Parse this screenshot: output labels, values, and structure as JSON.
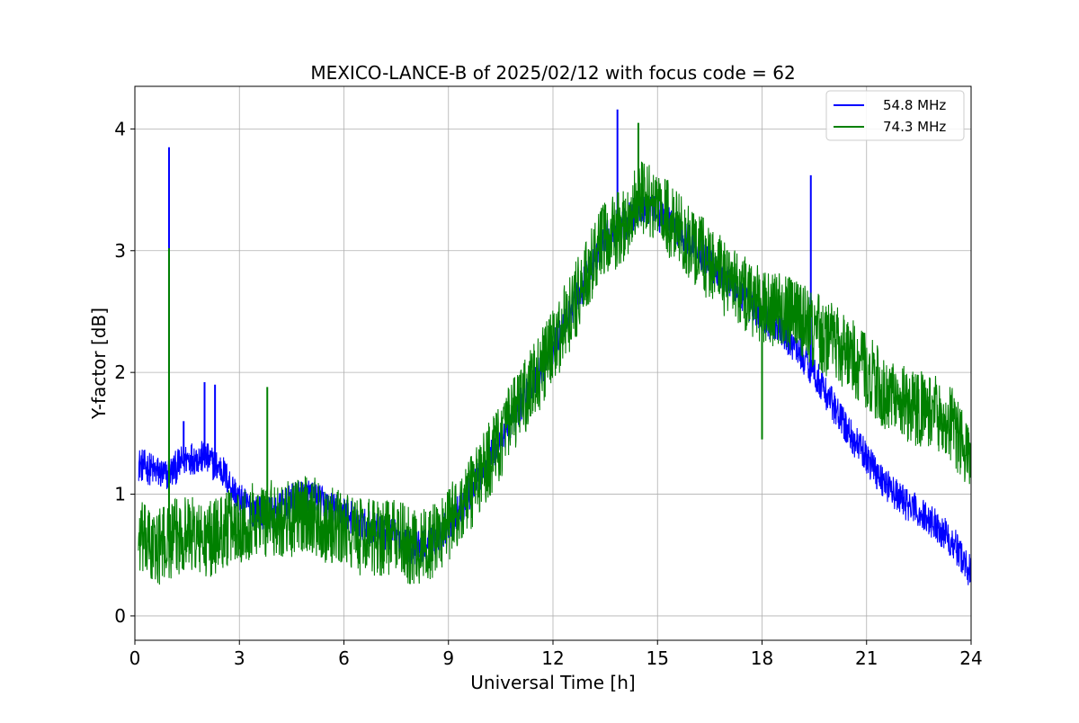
{
  "chart_data": {
    "type": "line",
    "title": "MEXICO-LANCE-B of 2025/02/12 with focus code = 62",
    "xlabel": "Universal Time [h]",
    "ylabel": "Y-factor [dB]",
    "xlim": [
      0,
      24
    ],
    "ylim": [
      -0.2,
      4.35
    ],
    "xticks": [
      0,
      3,
      6,
      9,
      12,
      15,
      18,
      21,
      24
    ],
    "yticks": [
      0,
      1,
      2,
      3,
      4
    ],
    "grid": true,
    "legend_position": "top-right",
    "series": [
      {
        "name": "54.8 MHz",
        "color": "#0000ff",
        "x": [
          0.1,
          0.5,
          0.9,
          1.5,
          2.0,
          2.5,
          3.0,
          3.5,
          4.0,
          4.5,
          5.0,
          5.5,
          6.0,
          6.5,
          7.0,
          7.5,
          8.0,
          8.5,
          9.0,
          9.5,
          10.0,
          10.5,
          11.0,
          11.5,
          12.0,
          12.5,
          13.0,
          13.5,
          14.0,
          14.5,
          15.0,
          15.5,
          16.0,
          16.5,
          17.0,
          17.5,
          18.0,
          18.5,
          19.0,
          19.5,
          20.0,
          20.5,
          21.0,
          21.5,
          22.0,
          22.5,
          23.0,
          23.5,
          24.0
        ],
        "y": [
          1.25,
          1.2,
          1.15,
          1.3,
          1.3,
          1.2,
          0.95,
          0.85,
          0.85,
          0.95,
          1.0,
          0.9,
          0.85,
          0.75,
          0.7,
          0.65,
          0.55,
          0.6,
          0.75,
          0.95,
          1.2,
          1.45,
          1.7,
          1.95,
          2.2,
          2.5,
          2.8,
          3.1,
          3.2,
          3.35,
          3.3,
          3.2,
          3.05,
          2.9,
          2.75,
          2.6,
          2.45,
          2.35,
          2.2,
          2.0,
          1.75,
          1.5,
          1.3,
          1.1,
          0.95,
          0.85,
          0.75,
          0.6,
          0.35
        ],
        "noise": 0.14,
        "spikes": [
          [
            0.98,
            3.85
          ],
          [
            1.4,
            1.6
          ],
          [
            2.0,
            1.92
          ],
          [
            2.3,
            1.9
          ],
          [
            13.85,
            4.16
          ],
          [
            19.4,
            3.62
          ]
        ]
      },
      {
        "name": "74.3 MHz",
        "color": "#008000",
        "x": [
          0.1,
          0.5,
          0.9,
          1.5,
          2.0,
          2.5,
          3.0,
          3.5,
          4.0,
          4.5,
          5.0,
          5.5,
          6.0,
          6.5,
          7.0,
          7.5,
          8.0,
          8.5,
          9.0,
          9.5,
          10.0,
          10.5,
          11.0,
          11.5,
          12.0,
          12.5,
          13.0,
          13.5,
          14.0,
          14.5,
          15.0,
          15.5,
          16.0,
          16.5,
          17.0,
          17.5,
          18.0,
          18.5,
          19.0,
          19.5,
          20.0,
          20.5,
          21.0,
          21.5,
          22.0,
          22.5,
          23.0,
          23.5,
          24.0
        ],
        "y": [
          0.65,
          0.55,
          0.6,
          0.7,
          0.6,
          0.7,
          0.75,
          0.8,
          0.8,
          0.8,
          0.85,
          0.75,
          0.7,
          0.65,
          0.65,
          0.65,
          0.55,
          0.6,
          0.75,
          0.95,
          1.2,
          1.45,
          1.7,
          1.95,
          2.2,
          2.5,
          2.8,
          3.1,
          3.2,
          3.45,
          3.35,
          3.2,
          3.05,
          2.9,
          2.75,
          2.65,
          2.55,
          2.5,
          2.45,
          2.35,
          2.25,
          2.15,
          2.0,
          1.85,
          1.75,
          1.7,
          1.65,
          1.55,
          1.2
        ],
        "noise": 0.32,
        "spikes": [
          [
            0.98,
            3.02
          ],
          [
            3.8,
            1.88
          ],
          [
            14.45,
            4.05
          ],
          [
            18.0,
            1.45
          ]
        ]
      }
    ]
  }
}
